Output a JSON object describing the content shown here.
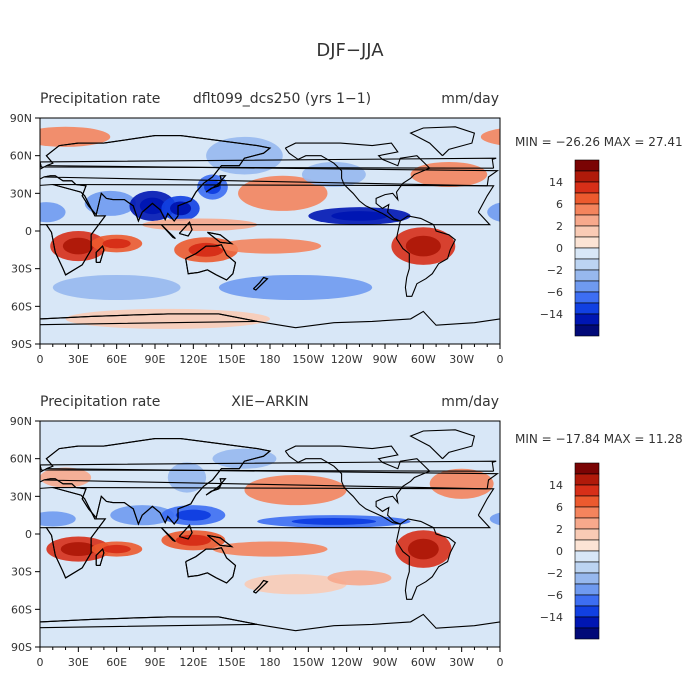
{
  "figure": {
    "title": "DJF−JJA"
  },
  "panels": [
    {
      "name": "model",
      "left_label": "Precipitation rate",
      "center_label": "dflt099_dcs250 (yrs 1−1)",
      "units": "mm/day",
      "stats": "MIN = −26.26  MAX =  27.41",
      "blobs": [
        {
          "lon": 20,
          "lat": 75,
          "rx": 35,
          "ry": 8,
          "level": 3
        },
        {
          "lon": 5,
          "lat": 15,
          "rx": 15,
          "ry": 8,
          "level": -3
        },
        {
          "lon": 55,
          "lat": 22,
          "rx": 20,
          "ry": 10,
          "level": -3
        },
        {
          "lon": 88,
          "lat": 20,
          "rx": 18,
          "ry": 12,
          "level": -6
        },
        {
          "lon": 110,
          "lat": 18,
          "rx": 15,
          "ry": 10,
          "level": -5
        },
        {
          "lon": 135,
          "lat": 35,
          "rx": 12,
          "ry": 10,
          "level": -4
        },
        {
          "lon": 125,
          "lat": 5,
          "rx": 45,
          "ry": 5,
          "level": 2
        },
        {
          "lon": 190,
          "lat": 30,
          "rx": 35,
          "ry": 14,
          "level": 3
        },
        {
          "lon": 30,
          "lat": -12,
          "rx": 22,
          "ry": 12,
          "level": 5
        },
        {
          "lon": 60,
          "lat": -10,
          "rx": 20,
          "ry": 7,
          "level": 4
        },
        {
          "lon": 130,
          "lat": -15,
          "rx": 25,
          "ry": 10,
          "level": 4
        },
        {
          "lon": 180,
          "lat": -12,
          "rx": 40,
          "ry": 6,
          "level": 3
        },
        {
          "lon": 250,
          "lat": 12,
          "rx": 40,
          "ry": 7,
          "level": -6
        },
        {
          "lon": 300,
          "lat": -12,
          "rx": 25,
          "ry": 15,
          "level": 5
        },
        {
          "lon": 320,
          "lat": 45,
          "rx": 30,
          "ry": 10,
          "level": 3
        },
        {
          "lon": 160,
          "lat": 60,
          "rx": 30,
          "ry": 15,
          "level": -2
        },
        {
          "lon": 230,
          "lat": 45,
          "rx": 25,
          "ry": 10,
          "level": -2
        },
        {
          "lon": 200,
          "lat": -45,
          "rx": 60,
          "ry": 10,
          "level": -3
        },
        {
          "lon": 60,
          "lat": -45,
          "rx": 50,
          "ry": 10,
          "level": -2
        },
        {
          "lon": 100,
          "lat": -70,
          "rx": 80,
          "ry": 8,
          "level": 1
        }
      ]
    },
    {
      "name": "observation",
      "left_label": "Precipitation rate",
      "center_label": "XIE−ARKIN",
      "units": "mm/day",
      "stats": "MIN = −17.84  MAX =  11.28",
      "blobs": [
        {
          "lon": 20,
          "lat": 45,
          "rx": 20,
          "ry": 8,
          "level": 2
        },
        {
          "lon": 10,
          "lat": 12,
          "rx": 18,
          "ry": 6,
          "level": -3
        },
        {
          "lon": 80,
          "lat": 15,
          "rx": 25,
          "ry": 8,
          "level": -3
        },
        {
          "lon": 120,
          "lat": 15,
          "rx": 25,
          "ry": 8,
          "level": -4
        },
        {
          "lon": 115,
          "lat": 45,
          "rx": 15,
          "ry": 12,
          "level": -2
        },
        {
          "lon": 200,
          "lat": 35,
          "rx": 40,
          "ry": 12,
          "level": 3
        },
        {
          "lon": 230,
          "lat": 10,
          "rx": 60,
          "ry": 5,
          "level": -4
        },
        {
          "lon": 30,
          "lat": -12,
          "rx": 25,
          "ry": 10,
          "level": 5
        },
        {
          "lon": 60,
          "lat": -12,
          "rx": 20,
          "ry": 6,
          "level": 4
        },
        {
          "lon": 120,
          "lat": -5,
          "rx": 25,
          "ry": 8,
          "level": 4
        },
        {
          "lon": 180,
          "lat": -12,
          "rx": 45,
          "ry": 6,
          "level": 3
        },
        {
          "lon": 300,
          "lat": -12,
          "rx": 22,
          "ry": 15,
          "level": 5
        },
        {
          "lon": 330,
          "lat": 40,
          "rx": 25,
          "ry": 12,
          "level": 3
        },
        {
          "lon": 160,
          "lat": 60,
          "rx": 25,
          "ry": 8,
          "level": -2
        },
        {
          "lon": 200,
          "lat": -40,
          "rx": 40,
          "ry": 8,
          "level": 1
        },
        {
          "lon": 250,
          "lat": -35,
          "rx": 25,
          "ry": 6,
          "level": 2
        }
      ]
    }
  ],
  "axes": {
    "lon_ticks": [
      "0",
      "30E",
      "60E",
      "90E",
      "120E",
      "150E",
      "180",
      "150W",
      "120W",
      "90W",
      "60W",
      "30W",
      "0"
    ],
    "lat_ticks": [
      "90N",
      "60N",
      "30N",
      "0",
      "30S",
      "60S",
      "90S"
    ]
  },
  "colorbar": {
    "labels": [
      "14",
      "6",
      "2",
      "0",
      "−2",
      "−6",
      "−14"
    ],
    "colors": [
      "#7a0404",
      "#b01a0a",
      "#d72f18",
      "#ec5a2e",
      "#f4845d",
      "#f7a98c",
      "#f9cbb5",
      "#fce4d5",
      "#d8e7f7",
      "#bcd4f2",
      "#97b8ee",
      "#6f9af0",
      "#3d6ef2",
      "#1140e2",
      "#0016b3",
      "#020a78"
    ]
  },
  "map": {
    "ocean_base": "#d8e7f7",
    "coast_color": "#000000"
  }
}
